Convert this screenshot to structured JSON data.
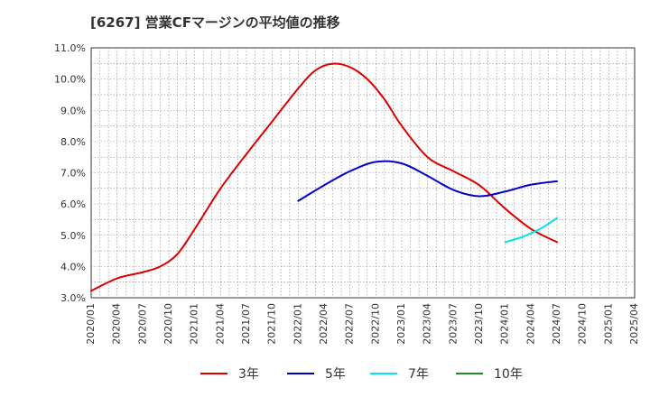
{
  "chart_data": {
    "type": "line",
    "title": "[6267]  営業CFマージンの平均値の推移",
    "xlabel": "",
    "ylabel": "",
    "ylim": [
      3.0,
      11.0
    ],
    "xlim": [
      "2020-01",
      "2025-04"
    ],
    "grid": true,
    "legend_position": "bottom",
    "y_ticks": [
      "3.0%",
      "4.0%",
      "5.0%",
      "6.0%",
      "7.0%",
      "8.0%",
      "9.0%",
      "10.0%",
      "11.0%"
    ],
    "x_ticks": [
      "2020/01",
      "2020/04",
      "2020/07",
      "2020/10",
      "2021/01",
      "2021/04",
      "2021/07",
      "2021/10",
      "2022/01",
      "2022/04",
      "2022/07",
      "2022/10",
      "2023/01",
      "2023/04",
      "2023/07",
      "2023/10",
      "2024/01",
      "2024/04",
      "2024/07",
      "2024/10",
      "2025/01",
      "2025/04"
    ],
    "series": [
      {
        "name": "3年",
        "color": "#dd0000",
        "points": [
          [
            "2020-01",
            3.22
          ],
          [
            "2020-04",
            3.62
          ],
          [
            "2020-07",
            3.82
          ],
          [
            "2020-09",
            4.0
          ],
          [
            "2020-11",
            4.4
          ],
          [
            "2021-01",
            5.2
          ],
          [
            "2021-04",
            6.5
          ],
          [
            "2021-07",
            7.6
          ],
          [
            "2021-10",
            8.65
          ],
          [
            "2022-01",
            9.7
          ],
          [
            "2022-03",
            10.28
          ],
          [
            "2022-05",
            10.49
          ],
          [
            "2022-07",
            10.38
          ],
          [
            "2022-09",
            10.0
          ],
          [
            "2022-11",
            9.35
          ],
          [
            "2023-01",
            8.5
          ],
          [
            "2023-04",
            7.5
          ],
          [
            "2023-07",
            7.05
          ],
          [
            "2023-10",
            6.6
          ],
          [
            "2024-01",
            5.85
          ],
          [
            "2024-04",
            5.2
          ],
          [
            "2024-07",
            4.78
          ]
        ]
      },
      {
        "name": "5年",
        "color": "#0000cc",
        "points": [
          [
            "2022-01",
            6.1
          ],
          [
            "2022-04",
            6.6
          ],
          [
            "2022-07",
            7.05
          ],
          [
            "2022-10",
            7.35
          ],
          [
            "2023-01",
            7.3
          ],
          [
            "2023-04",
            6.9
          ],
          [
            "2023-07",
            6.45
          ],
          [
            "2023-10",
            6.25
          ],
          [
            "2024-01",
            6.4
          ],
          [
            "2024-04",
            6.62
          ],
          [
            "2024-07",
            6.73
          ]
        ]
      },
      {
        "name": "7年",
        "color": "#00e5ee",
        "points": [
          [
            "2024-01",
            4.78
          ],
          [
            "2024-03",
            4.95
          ],
          [
            "2024-05",
            5.2
          ],
          [
            "2024-07",
            5.55
          ]
        ]
      },
      {
        "name": "10年",
        "color": "#228b22",
        "points": []
      }
    ]
  }
}
